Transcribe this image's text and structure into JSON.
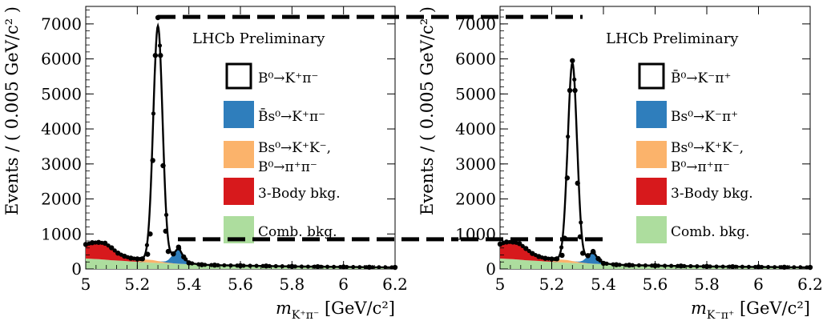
{
  "chart_data": [
    {
      "type": "line",
      "panel": "left",
      "label": "LHCb Preliminary",
      "xlabel": "m_{K+π−} [GeV/c²]",
      "xlabel_main": "m",
      "xlabel_sub": "K⁺π⁻",
      "xlabel_unit": " [GeV/c²]",
      "ylabel": "Events / ( 0.005 GeV/c² )",
      "xlim": [
        5.0,
        6.2
      ],
      "ylim": [
        0,
        7500
      ],
      "xticks": [
        5.0,
        5.2,
        5.4,
        5.6,
        5.8,
        6.0,
        6.2
      ],
      "xtick_labels": [
        "5",
        "5.2",
        "5.4",
        "5.6",
        "5.8",
        "6",
        "6.2"
      ],
      "yticks": [
        0,
        1000,
        2000,
        3000,
        4000,
        5000,
        6000,
        7000
      ],
      "ytick_labels": [
        "0",
        "1000",
        "2000",
        "3000",
        "4000",
        "5000",
        "6000",
        "7000"
      ],
      "legend": [
        {
          "key": "signal",
          "lines": [
            "B⁰→K⁺π⁻"
          ],
          "style": "outline",
          "color": "#000000"
        },
        {
          "key": "bs",
          "lines": [
            "B̄s⁰→K⁺π⁻"
          ],
          "style": "fill",
          "color": "#2f7ebc"
        },
        {
          "key": "misid",
          "lines": [
            "Bs⁰→K⁺K⁻,",
            "B⁰→π⁺π⁻"
          ],
          "style": "fill",
          "color": "#fbb36b"
        },
        {
          "key": "threebody",
          "lines": [
            "3-Body bkg."
          ],
          "style": "fill",
          "color": "#d7191c"
        },
        {
          "key": "comb",
          "lines": [
            "Comb. bkg."
          ],
          "style": "fill",
          "color": "#addd9e"
        }
      ],
      "dashed_levels": [
        7200,
        850
      ],
      "signal": {
        "mass": 5.28,
        "peak": 7000,
        "sigma": 0.018
      },
      "x": [
        5.0,
        5.025,
        5.05,
        5.075,
        5.1,
        5.125,
        5.15,
        5.175,
        5.2,
        5.22,
        5.24,
        5.25,
        5.26,
        5.27,
        5.28,
        5.29,
        5.3,
        5.31,
        5.32,
        5.34,
        5.36,
        5.38,
        5.4,
        5.45,
        5.5,
        5.6,
        5.7,
        5.8,
        5.9,
        6.0,
        6.1,
        6.2
      ],
      "series": [
        {
          "name": "Comb. bkg.",
          "values": [
            300,
            290,
            280,
            265,
            250,
            240,
            230,
            215,
            205,
            195,
            185,
            180,
            178,
            175,
            170,
            168,
            165,
            160,
            158,
            150,
            145,
            140,
            132,
            120,
            110,
            95,
            85,
            72,
            65,
            58,
            50,
            45
          ]
        },
        {
          "name": "3-Body bkg.",
          "values": [
            400,
            460,
            480,
            470,
            350,
            200,
            110,
            50,
            18,
            5,
            2,
            1,
            0,
            0,
            0,
            0,
            0,
            0,
            0,
            0,
            0,
            0,
            0,
            0,
            0,
            0,
            0,
            0,
            0,
            0,
            0,
            0
          ]
        },
        {
          "name": "Bs→KK, B→ππ",
          "values": [
            0,
            0,
            0,
            0,
            5,
            12,
            25,
            45,
            65,
            75,
            80,
            80,
            75,
            65,
            55,
            45,
            35,
            25,
            18,
            10,
            5,
            2,
            0,
            0,
            0,
            0,
            0,
            0,
            0,
            0,
            0,
            0
          ]
        },
        {
          "name": "B̄s→K+π−",
          "values": [
            0,
            0,
            0,
            0,
            0,
            0,
            0,
            0,
            0,
            0,
            0,
            0,
            0,
            0,
            0,
            5,
            15,
            35,
            80,
            260,
            470,
            200,
            40,
            2,
            0,
            0,
            0,
            0,
            0,
            0,
            0,
            0
          ]
        },
        {
          "name": "Total",
          "values": [
            700,
            750,
            760,
            735,
            605,
            452,
            365,
            310,
            288,
            290,
            420,
            1000,
            3100,
            6100,
            7180,
            6100,
            2950,
            1080,
            500,
            430,
            625,
            345,
            175,
            122,
            110,
            95,
            85,
            72,
            65,
            58,
            50,
            45
          ]
        }
      ]
    },
    {
      "type": "line",
      "panel": "right",
      "label": "LHCb Preliminary",
      "xlabel": "m_{K−π+} [GeV/c²]",
      "xlabel_main": "m",
      "xlabel_sub": "K⁻π⁺",
      "xlabel_unit": " [GeV/c²]",
      "ylabel": "Events / ( 0.005 GeV/c² )",
      "xlim": [
        5.0,
        6.2
      ],
      "ylim": [
        0,
        7500
      ],
      "xticks": [
        5.0,
        5.2,
        5.4,
        5.6,
        5.8,
        6.0,
        6.2
      ],
      "xtick_labels": [
        "5",
        "5.2",
        "5.4",
        "5.6",
        "5.8",
        "6",
        "6.2"
      ],
      "yticks": [
        0,
        1000,
        2000,
        3000,
        4000,
        5000,
        6000,
        7000
      ],
      "ytick_labels": [
        "0",
        "1000",
        "2000",
        "3000",
        "4000",
        "5000",
        "6000",
        "7000"
      ],
      "legend": [
        {
          "key": "signal",
          "lines": [
            "B̄⁰→K⁻π⁺"
          ],
          "style": "outline",
          "color": "#000000"
        },
        {
          "key": "bs",
          "lines": [
            "Bs⁰→K⁻π⁺"
          ],
          "style": "fill",
          "color": "#2f7ebc"
        },
        {
          "key": "misid",
          "lines": [
            "Bs⁰→K⁺K⁻,",
            "B⁰→π⁺π⁻"
          ],
          "style": "fill",
          "color": "#fbb36b"
        },
        {
          "key": "threebody",
          "lines": [
            "3-Body bkg."
          ],
          "style": "fill",
          "color": "#d7191c"
        },
        {
          "key": "comb",
          "lines": [
            "Comb. bkg."
          ],
          "style": "fill",
          "color": "#addd9e"
        }
      ],
      "dashed_levels": [
        7200,
        850
      ],
      "signal": {
        "mass": 5.28,
        "peak": 5900,
        "sigma": 0.018
      },
      "x": [
        5.0,
        5.025,
        5.05,
        5.075,
        5.1,
        5.125,
        5.15,
        5.175,
        5.2,
        5.22,
        5.24,
        5.25,
        5.26,
        5.27,
        5.28,
        5.29,
        5.3,
        5.31,
        5.32,
        5.34,
        5.36,
        5.38,
        5.4,
        5.45,
        5.5,
        5.6,
        5.7,
        5.8,
        5.9,
        6.0,
        6.1,
        6.2
      ],
      "series": [
        {
          "name": "Comb. bkg.",
          "values": [
            300,
            290,
            280,
            265,
            250,
            240,
            230,
            215,
            205,
            195,
            185,
            180,
            178,
            175,
            170,
            168,
            165,
            160,
            158,
            150,
            145,
            140,
            132,
            120,
            110,
            95,
            85,
            72,
            65,
            58,
            50,
            45
          ]
        },
        {
          "name": "3-Body bkg.",
          "values": [
            410,
            480,
            490,
            460,
            330,
            190,
            100,
            45,
            15,
            5,
            2,
            1,
            0,
            0,
            0,
            0,
            0,
            0,
            0,
            0,
            0,
            0,
            0,
            0,
            0,
            0,
            0,
            0,
            0,
            0,
            0,
            0
          ]
        },
        {
          "name": "Bs→KK, B→ππ",
          "values": [
            0,
            0,
            0,
            0,
            5,
            12,
            25,
            45,
            65,
            75,
            80,
            80,
            75,
            65,
            55,
            45,
            35,
            25,
            18,
            10,
            5,
            2,
            0,
            0,
            0,
            0,
            0,
            0,
            0,
            0,
            0,
            0
          ]
        },
        {
          "name": "Bs→K−π+",
          "values": [
            0,
            0,
            0,
            0,
            0,
            0,
            0,
            0,
            0,
            0,
            0,
            0,
            0,
            0,
            0,
            4,
            12,
            28,
            60,
            200,
            350,
            150,
            30,
            2,
            0,
            0,
            0,
            0,
            0,
            0,
            0,
            0
          ]
        },
        {
          "name": "Total",
          "values": [
            710,
            770,
            770,
            725,
            585,
            442,
            355,
            305,
            285,
            290,
            390,
            880,
            2600,
            5100,
            5950,
            5100,
            2450,
            920,
            450,
            380,
            500,
            295,
            162,
            122,
            110,
            95,
            85,
            72,
            65,
            58,
            50,
            45
          ]
        }
      ]
    }
  ]
}
